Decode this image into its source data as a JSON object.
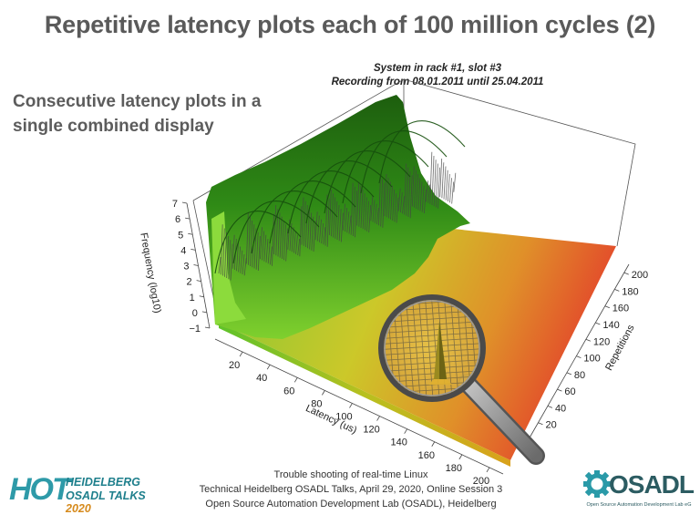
{
  "slide": {
    "title": "Repetitive latency plots each of 100 million cycles (2)",
    "subtitle_line1": "Consecutive latency plots in a",
    "subtitle_line2": "single combined display"
  },
  "plot": {
    "title_line1": "System in rack #1, slot #3",
    "title_line2": "Recording from 08.01.2011 until 25.04.2011"
  },
  "chart_data": {
    "type": "surface3d",
    "title": "System in rack #1, slot #3 / Recording from 08.01.2011 until 25.04.2011",
    "xlabel": "Latency (us)",
    "ylabel": "Repetitions",
    "zlabel": "Frequency (log10)",
    "x_ticks": [
      "20",
      "40",
      "60",
      "80",
      "100",
      "120",
      "140",
      "160",
      "180",
      "200"
    ],
    "y_ticks": [
      "20",
      "40",
      "60",
      "80",
      "100",
      "120",
      "140",
      "160",
      "180",
      "200"
    ],
    "z_ticks": [
      "−1",
      "0",
      "1",
      "2",
      "3",
      "4",
      "5",
      "6",
      "7"
    ],
    "xlim": [
      0,
      210
    ],
    "ylim": [
      0,
      210
    ],
    "zlim": [
      -1,
      7.5
    ],
    "colors": {
      "high": "#1f6a10",
      "mid": "#8fce2a",
      "low": "#d8a21a",
      "far": "#e34420"
    }
  },
  "footer": {
    "line1": "Trouble shooting of real-time Linux",
    "line2": "Technical Heidelberg OSADL Talks, April 29, 2020, Online Session 3",
    "line3": "Open Source Automation Development Lab (OSADL), Heidelberg"
  },
  "logos": {
    "hot_big": "HOT",
    "hot_line1": "HEIDELBERG",
    "hot_line2a": "OSADL TALKS ",
    "hot_line2b": "2020",
    "osadl_name": "OSADL",
    "osadl_sub": "Open Source Automation Development Lab eG"
  }
}
